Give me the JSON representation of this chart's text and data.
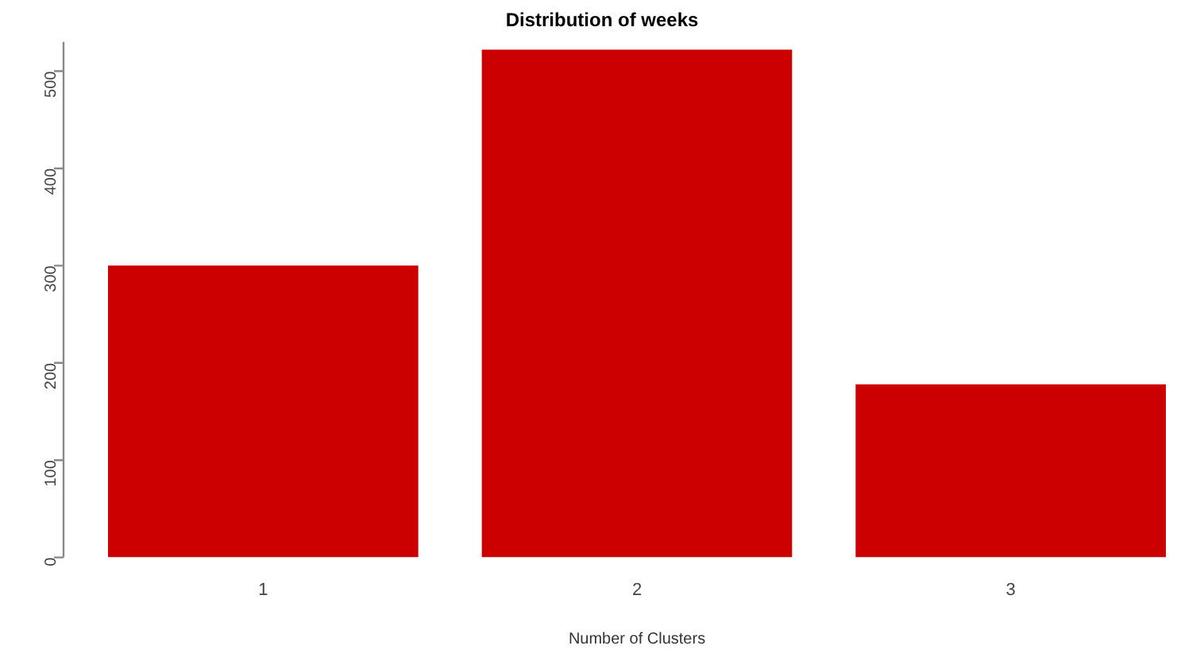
{
  "chart_data": {
    "type": "bar",
    "title": "Distribution of weeks",
    "xlabel": "Number of Clusters",
    "categories": [
      "1",
      "2",
      "3"
    ],
    "values": [
      300,
      522,
      178
    ],
    "color": "#cc0000",
    "ylim": [
      0,
      530
    ],
    "yticks": [
      0,
      100,
      200,
      300,
      400,
      500
    ],
    "grid": false,
    "legend": false
  }
}
